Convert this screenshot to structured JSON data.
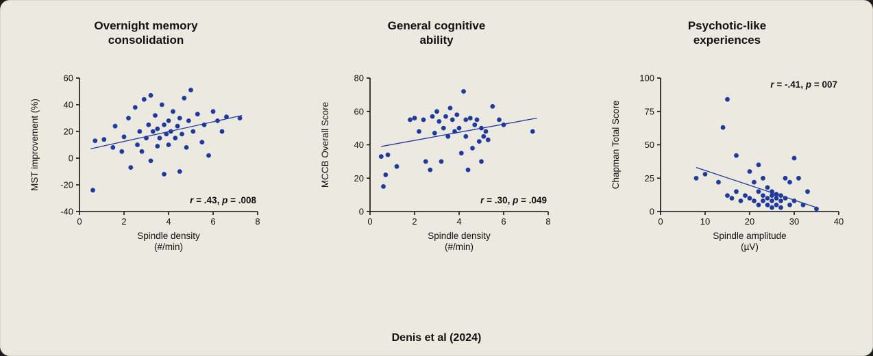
{
  "caption": "Denis et al (2024)",
  "colors": {
    "background": "#ece9e1",
    "point": "#1f3a9c",
    "text": "#111111"
  },
  "chart_data": [
    {
      "type": "scatter",
      "title": "Overnight memory\nconsolidation",
      "xlabel": "Spindle density\n(#/min)",
      "ylabel": "MST improvement (%)",
      "xlim": [
        0,
        8
      ],
      "ylim": [
        -40,
        60
      ],
      "xticks": [
        0,
        2,
        4,
        6,
        8
      ],
      "yticks": [
        -40,
        -20,
        0,
        20,
        40,
        60
      ],
      "annotation": "r = .43, p = .008",
      "annotation_position": "bottom-right",
      "trend": {
        "x1": 0.5,
        "y1": 7,
        "x2": 7.3,
        "y2": 32
      },
      "points": [
        [
          0.6,
          -24
        ],
        [
          0.7,
          13
        ],
        [
          1.1,
          14
        ],
        [
          1.5,
          8
        ],
        [
          1.6,
          24
        ],
        [
          1.9,
          5
        ],
        [
          2.0,
          16
        ],
        [
          2.2,
          30
        ],
        [
          2.3,
          -7
        ],
        [
          2.5,
          38
        ],
        [
          2.6,
          10
        ],
        [
          2.7,
          20
        ],
        [
          2.8,
          5
        ],
        [
          2.9,
          44
        ],
        [
          3.0,
          15
        ],
        [
          3.1,
          25
        ],
        [
          3.2,
          -2
        ],
        [
          3.2,
          47
        ],
        [
          3.3,
          20
        ],
        [
          3.4,
          32
        ],
        [
          3.5,
          9
        ],
        [
          3.5,
          22
        ],
        [
          3.6,
          15
        ],
        [
          3.7,
          40
        ],
        [
          3.8,
          25
        ],
        [
          3.8,
          -12
        ],
        [
          3.9,
          18
        ],
        [
          4.0,
          10
        ],
        [
          4.0,
          28
        ],
        [
          4.1,
          20
        ],
        [
          4.2,
          35
        ],
        [
          4.3,
          15
        ],
        [
          4.4,
          24
        ],
        [
          4.5,
          -10
        ],
        [
          4.5,
          30
        ],
        [
          4.6,
          18
        ],
        [
          4.7,
          45
        ],
        [
          4.8,
          8
        ],
        [
          4.9,
          28
        ],
        [
          5.0,
          51
        ],
        [
          5.1,
          20
        ],
        [
          5.3,
          33
        ],
        [
          5.5,
          12
        ],
        [
          5.6,
          25
        ],
        [
          5.8,
          2
        ],
        [
          6.0,
          35
        ],
        [
          6.2,
          28
        ],
        [
          6.4,
          20
        ],
        [
          6.6,
          31
        ],
        [
          7.2,
          30
        ]
      ]
    },
    {
      "type": "scatter",
      "title": "General cognitive\nability",
      "xlabel": "Spindle density\n(#/min)",
      "ylabel": "MCCB Overall Score",
      "xlim": [
        0,
        8
      ],
      "ylim": [
        0,
        80
      ],
      "xticks": [
        0,
        2,
        4,
        6,
        8
      ],
      "yticks": [
        0,
        20,
        40,
        60,
        80
      ],
      "annotation": "r = .30, p = .049",
      "annotation_position": "bottom-right",
      "trend": {
        "x1": 0.5,
        "y1": 39,
        "x2": 7.5,
        "y2": 56
      },
      "points": [
        [
          0.5,
          33
        ],
        [
          0.6,
          15
        ],
        [
          0.7,
          22
        ],
        [
          0.8,
          34
        ],
        [
          1.2,
          27
        ],
        [
          1.8,
          55
        ],
        [
          2.0,
          56
        ],
        [
          2.2,
          48
        ],
        [
          2.4,
          55
        ],
        [
          2.5,
          30
        ],
        [
          2.7,
          25
        ],
        [
          2.8,
          57
        ],
        [
          2.9,
          47
        ],
        [
          3.0,
          60
        ],
        [
          3.1,
          54
        ],
        [
          3.2,
          30
        ],
        [
          3.3,
          50
        ],
        [
          3.4,
          57
        ],
        [
          3.5,
          45
        ],
        [
          3.6,
          62
        ],
        [
          3.7,
          55
        ],
        [
          3.8,
          48
        ],
        [
          3.9,
          58
        ],
        [
          4.0,
          50
        ],
        [
          4.1,
          35
        ],
        [
          4.2,
          72
        ],
        [
          4.3,
          55
        ],
        [
          4.3,
          45
        ],
        [
          4.4,
          25
        ],
        [
          4.5,
          56
        ],
        [
          4.6,
          38
        ],
        [
          4.7,
          52
        ],
        [
          4.8,
          55
        ],
        [
          4.9,
          42
        ],
        [
          5.0,
          50
        ],
        [
          5.0,
          30
        ],
        [
          5.1,
          45
        ],
        [
          5.2,
          48
        ],
        [
          5.3,
          43
        ],
        [
          5.5,
          63
        ],
        [
          5.8,
          55
        ],
        [
          6.0,
          52
        ],
        [
          7.3,
          48
        ]
      ]
    },
    {
      "type": "scatter",
      "title": "Psychotic-like\nexperiences",
      "xlabel": "Spindle amplitude\n(µV)",
      "ylabel": "Chapman Total Score",
      "xlim": [
        0,
        40
      ],
      "ylim": [
        0,
        100
      ],
      "xticks": [
        0,
        10,
        20,
        30,
        40
      ],
      "yticks": [
        0,
        25,
        50,
        75,
        100
      ],
      "annotation": "r = -.41, p = 007",
      "annotation_position": "top-right",
      "trend": {
        "x1": 8,
        "y1": 33,
        "x2": 35,
        "y2": 3
      },
      "points": [
        [
          8,
          25
        ],
        [
          10,
          28
        ],
        [
          13,
          22
        ],
        [
          14,
          63
        ],
        [
          15,
          84
        ],
        [
          15,
          12
        ],
        [
          16,
          10
        ],
        [
          17,
          15
        ],
        [
          17,
          42
        ],
        [
          18,
          8
        ],
        [
          19,
          12
        ],
        [
          20,
          30
        ],
        [
          20,
          10
        ],
        [
          21,
          22
        ],
        [
          21,
          8
        ],
        [
          22,
          15
        ],
        [
          22,
          5
        ],
        [
          22,
          35
        ],
        [
          23,
          12
        ],
        [
          23,
          25
        ],
        [
          23,
          8
        ],
        [
          24,
          10
        ],
        [
          24,
          18
        ],
        [
          24,
          5
        ],
        [
          25,
          12
        ],
        [
          25,
          8
        ],
        [
          25,
          15
        ],
        [
          25,
          3
        ],
        [
          26,
          10
        ],
        [
          26,
          5
        ],
        [
          26,
          13
        ],
        [
          27,
          8
        ],
        [
          27,
          12
        ],
        [
          27,
          3
        ],
        [
          28,
          25
        ],
        [
          28,
          10
        ],
        [
          29,
          22
        ],
        [
          29,
          5
        ],
        [
          30,
          40
        ],
        [
          30,
          8
        ],
        [
          31,
          25
        ],
        [
          32,
          5
        ],
        [
          33,
          15
        ],
        [
          35,
          2
        ]
      ]
    }
  ]
}
